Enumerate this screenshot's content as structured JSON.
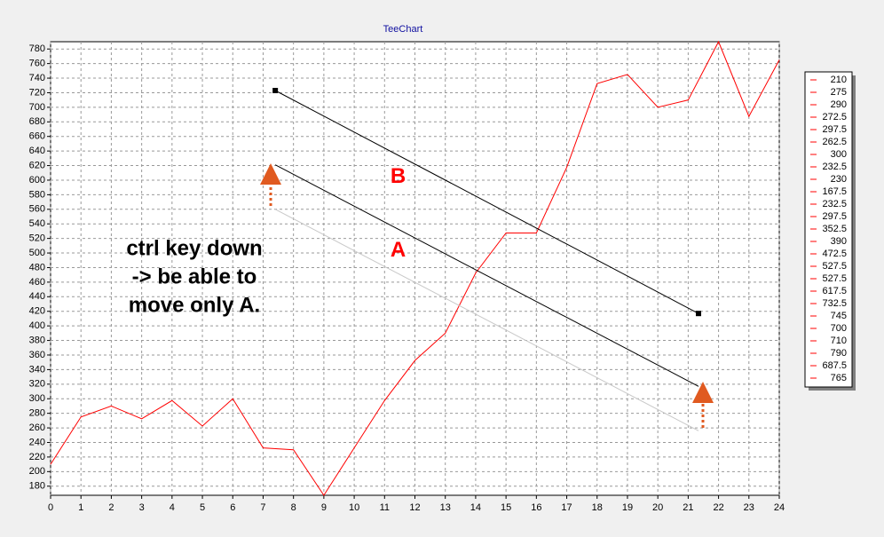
{
  "chart_data": {
    "type": "line",
    "title": "TeeChart",
    "x": [
      0,
      1,
      2,
      3,
      4,
      5,
      6,
      7,
      8,
      9,
      10,
      11,
      12,
      13,
      14,
      15,
      16,
      17,
      18,
      19,
      20,
      21,
      22,
      23,
      24
    ],
    "series": [
      {
        "color": "#ff0000",
        "values": [
          210,
          275,
          290,
          272.5,
          297.5,
          262.5,
          300,
          232.5,
          230,
          167.5,
          232.5,
          297.5,
          352.5,
          390,
          472.5,
          527.5,
          527.5,
          617.5,
          732.5,
          745,
          700,
          710,
          790,
          687.5,
          765
        ]
      }
    ],
    "xlim": [
      0,
      24
    ],
    "xticks": [
      0,
      1,
      2,
      3,
      4,
      5,
      6,
      7,
      8,
      9,
      10,
      11,
      12,
      13,
      14,
      15,
      16,
      17,
      18,
      19,
      20,
      21,
      22,
      23,
      24
    ],
    "ylim": [
      167.5,
      790
    ],
    "yticks": [
      180,
      200,
      220,
      240,
      260,
      280,
      300,
      320,
      340,
      360,
      380,
      400,
      420,
      440,
      460,
      480,
      500,
      520,
      540,
      560,
      580,
      600,
      620,
      640,
      660,
      680,
      700,
      720,
      740,
      760,
      780
    ],
    "grid": true,
    "trend_lines": [
      {
        "label": "B",
        "x": [
          7.4,
          21.34
        ],
        "y": [
          723,
          417
        ],
        "color": "#000000"
      },
      {
        "label": "A",
        "x": [
          7.4,
          21.34
        ],
        "y": [
          621,
          317
        ],
        "color": "#000000"
      },
      {
        "x": [
          7.4,
          21.34
        ],
        "y": [
          560,
          256
        ],
        "color": "#c8c8c8"
      }
    ],
    "annotations": [
      "ctrl key down",
      "-> be able to",
      "move only A."
    ]
  }
}
